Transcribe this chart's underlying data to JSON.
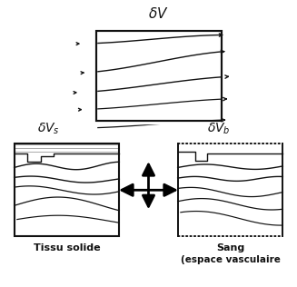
{
  "bg_color": "#ffffff",
  "line_color": "#111111",
  "arrow_color": "#000000",
  "fig_width": 3.27,
  "fig_height": 3.16,
  "title_top": "$\\delta V$",
  "label_left_main": "$\\delta V_s$",
  "label_right_main": "$\\delta V_b$",
  "label_bottom_left": "Tissu solide",
  "label_bottom_right_1": "Sang",
  "label_bottom_right_2": "(espace vasculaire"
}
